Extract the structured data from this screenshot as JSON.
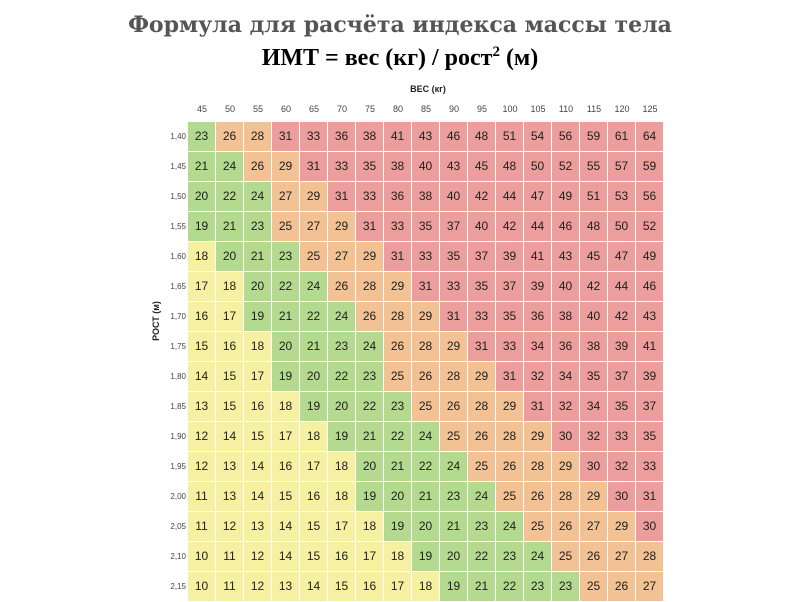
{
  "header": {
    "title": "Формула для расчёта индекса массы тела",
    "formula_main": "ИМТ = вес (кг) / рост",
    "formula_sup": "2",
    "formula_tail": " (м)"
  },
  "chart_data": {
    "type": "heatmap",
    "xlabel": "ВЕС (кг)",
    "ylabel": "РОСТ (м)",
    "x": [
      "45",
      "50",
      "55",
      "60",
      "65",
      "70",
      "75",
      "80",
      "85",
      "90",
      "95",
      "100",
      "105",
      "110",
      "115",
      "120",
      "125"
    ],
    "y": [
      "1,40",
      "1,45",
      "1,50",
      "1,55",
      "1,60",
      "1,65",
      "1,70",
      "1,75",
      "1,80",
      "1,85",
      "1,90",
      "1,95",
      "2,00",
      "2,05",
      "2,10",
      "2,15"
    ],
    "values": [
      [
        23,
        26,
        28,
        31,
        33,
        36,
        38,
        41,
        43,
        46,
        48,
        51,
        54,
        56,
        59,
        61,
        64
      ],
      [
        21,
        24,
        26,
        29,
        31,
        33,
        35,
        38,
        40,
        43,
        45,
        48,
        50,
        52,
        55,
        57,
        59
      ],
      [
        20,
        22,
        24,
        27,
        29,
        31,
        33,
        36,
        38,
        40,
        42,
        44,
        47,
        49,
        51,
        53,
        56
      ],
      [
        19,
        21,
        23,
        25,
        27,
        29,
        31,
        33,
        35,
        37,
        40,
        42,
        44,
        46,
        48,
        50,
        52
      ],
      [
        18,
        20,
        21,
        23,
        25,
        27,
        29,
        31,
        33,
        35,
        37,
        39,
        41,
        43,
        45,
        47,
        49
      ],
      [
        17,
        18,
        20,
        22,
        24,
        26,
        28,
        29,
        31,
        33,
        35,
        37,
        39,
        40,
        42,
        44,
        46
      ],
      [
        16,
        17,
        19,
        21,
        22,
        24,
        26,
        28,
        29,
        31,
        33,
        35,
        36,
        38,
        40,
        42,
        43
      ],
      [
        15,
        16,
        18,
        20,
        21,
        23,
        24,
        26,
        28,
        29,
        31,
        33,
        34,
        36,
        38,
        39,
        41
      ],
      [
        14,
        15,
        17,
        19,
        20,
        22,
        23,
        25,
        26,
        28,
        29,
        31,
        32,
        34,
        35,
        37,
        39
      ],
      [
        13,
        15,
        16,
        18,
        19,
        20,
        22,
        23,
        25,
        26,
        28,
        29,
        31,
        32,
        34,
        35,
        37
      ],
      [
        12,
        14,
        15,
        17,
        18,
        19,
        21,
        22,
        24,
        25,
        26,
        28,
        29,
        30,
        32,
        33,
        35
      ],
      [
        12,
        13,
        14,
        16,
        17,
        18,
        20,
        21,
        22,
        24,
        25,
        26,
        28,
        29,
        30,
        32,
        33
      ],
      [
        11,
        13,
        14,
        15,
        16,
        18,
        19,
        20,
        21,
        23,
        24,
        25,
        26,
        28,
        29,
        30,
        31
      ],
      [
        11,
        12,
        13,
        14,
        15,
        17,
        18,
        19,
        20,
        21,
        23,
        24,
        25,
        26,
        27,
        29,
        30
      ],
      [
        10,
        11,
        12,
        14,
        15,
        16,
        17,
        18,
        19,
        20,
        22,
        23,
        24,
        25,
        26,
        27,
        28
      ],
      [
        10,
        11,
        12,
        13,
        14,
        15,
        16,
        17,
        18,
        19,
        21,
        22,
        23,
        23,
        25,
        26,
        27
      ]
    ],
    "colors": {
      "yellow": "#f6f0a3",
      "green": "#b4da8f",
      "orange": "#f2c294",
      "red": "#ec9e9c"
    },
    "color_thresholds": {
      "yellow_below": 19,
      "green_below": 25,
      "orange_below": 30
    },
    "grid": true
  }
}
